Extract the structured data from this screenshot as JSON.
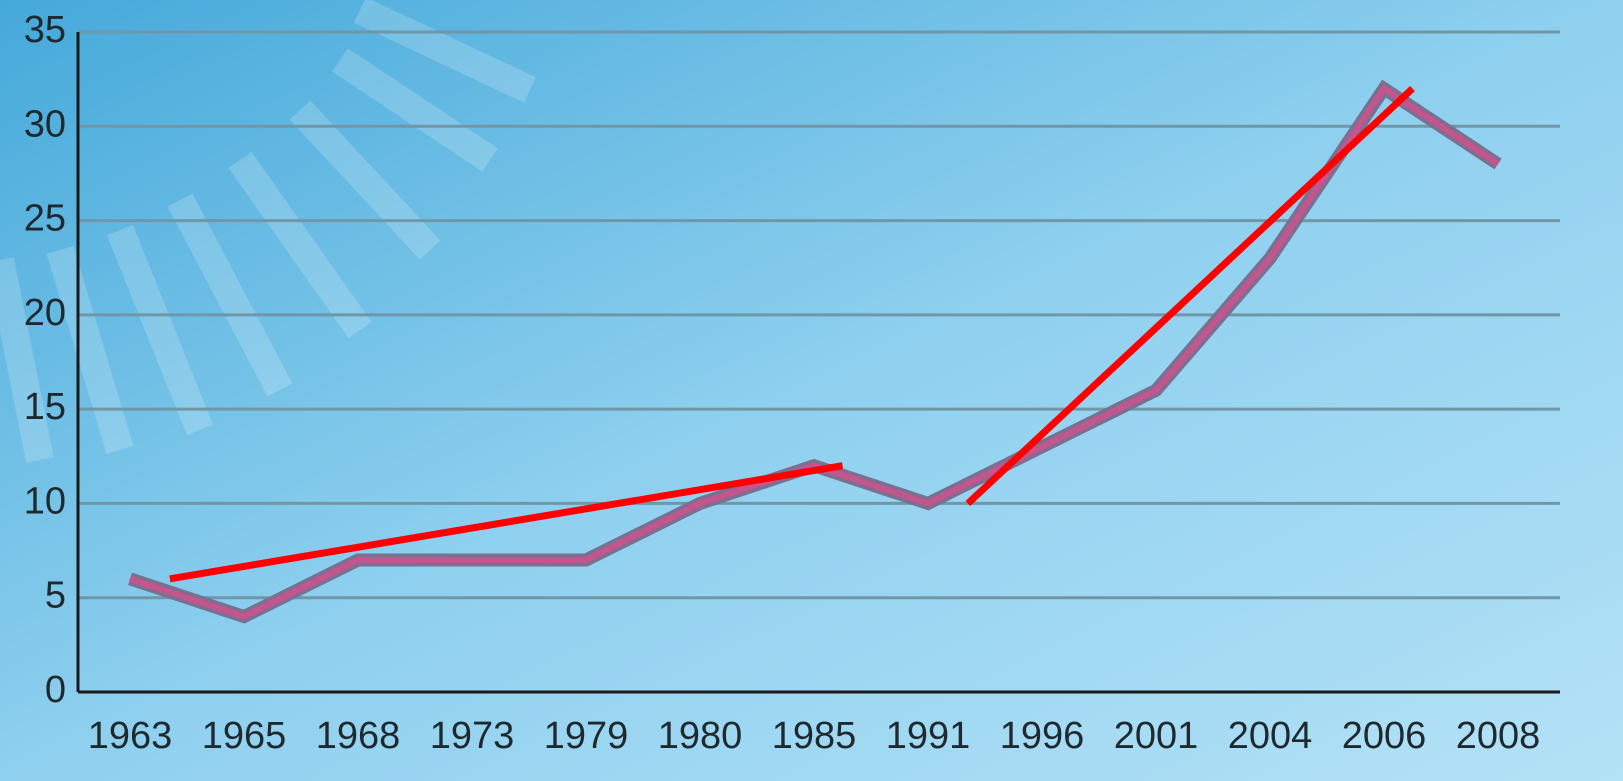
{
  "chart_data": {
    "type": "line",
    "categories": [
      "1963",
      "1965",
      "1968",
      "1973",
      "1979",
      "1980",
      "1985",
      "1991",
      "1996",
      "2001",
      "2004",
      "2006",
      "2008"
    ],
    "series": [
      {
        "color": "#c4558e",
        "values": [
          6,
          4,
          7,
          7,
          7,
          10,
          12,
          10,
          13,
          16,
          23,
          32,
          28
        ]
      }
    ],
    "trend_lines": [
      {
        "color": "#ff0000",
        "from": {
          "category": "1963",
          "value": 6
        },
        "to": {
          "category": "1985",
          "value": 12
        }
      },
      {
        "color": "#ff0000",
        "from": {
          "category": "1991",
          "value": 10
        },
        "to": {
          "category": "2006",
          "value": 32
        }
      }
    ],
    "ylim": [
      0,
      35
    ],
    "yticks": [
      0,
      5,
      10,
      15,
      20,
      25,
      30,
      35
    ],
    "grid": true
  }
}
